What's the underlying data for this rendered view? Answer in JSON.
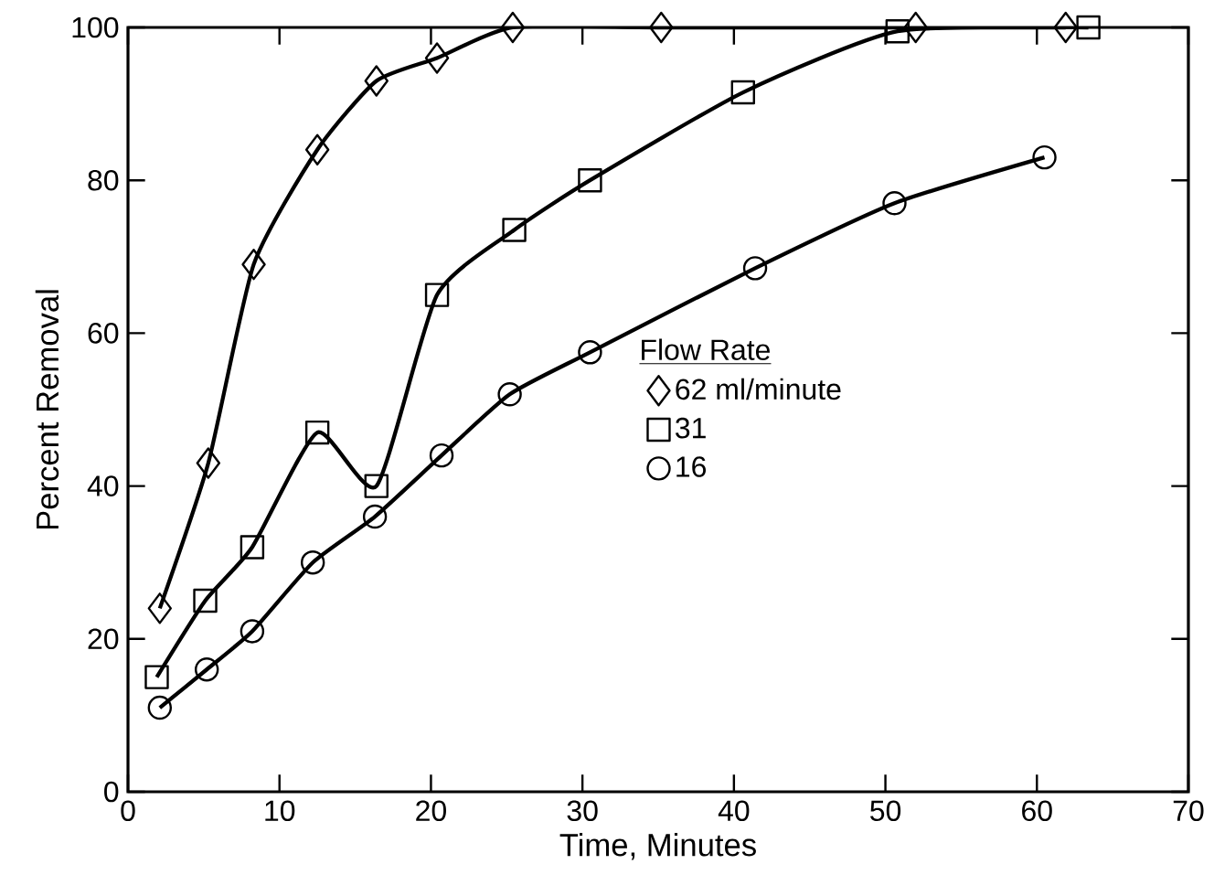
{
  "chart_data": {
    "type": "line",
    "xlabel": "Time, Minutes",
    "ylabel": "Percent Removal",
    "legend_title": "Flow Rate",
    "legend": "right",
    "xlim": [
      0,
      70
    ],
    "xticks": [
      0,
      10,
      20,
      30,
      40,
      50,
      60,
      70
    ],
    "ylim": [
      0,
      100
    ],
    "yticks": [
      0,
      20,
      40,
      60,
      80,
      100
    ],
    "grid": false,
    "line_style": "solid",
    "series": [
      {
        "name": "62 ml/minute",
        "color": "#000000",
        "marker": "diamond",
        "x": [
          2.1,
          5.3,
          8.3,
          12.5,
          16.4,
          20.4,
          25.4,
          35.2,
          52.0,
          61.9
        ],
        "values": [
          24,
          43,
          69,
          84,
          93,
          96,
          100,
          100,
          100,
          100
        ]
      },
      {
        "name": "31",
        "color": "#000000",
        "marker": "square",
        "x": [
          1.9,
          5.1,
          8.2,
          12.5,
          16.4,
          20.4,
          25.5,
          30.5,
          40.6,
          50.8,
          63.4
        ],
        "values": [
          15,
          25,
          32,
          47,
          40,
          65,
          73.5,
          80,
          91.5,
          99.5,
          100
        ]
      },
      {
        "name": "16",
        "color": "#000000",
        "marker": "circle",
        "x": [
          2.1,
          5.2,
          8.2,
          12.2,
          16.3,
          20.7,
          25.2,
          30.5,
          41.4,
          50.6,
          60.5
        ],
        "values": [
          11,
          16,
          21,
          30,
          36,
          44,
          52,
          57.5,
          68.5,
          77,
          83
        ]
      }
    ]
  }
}
